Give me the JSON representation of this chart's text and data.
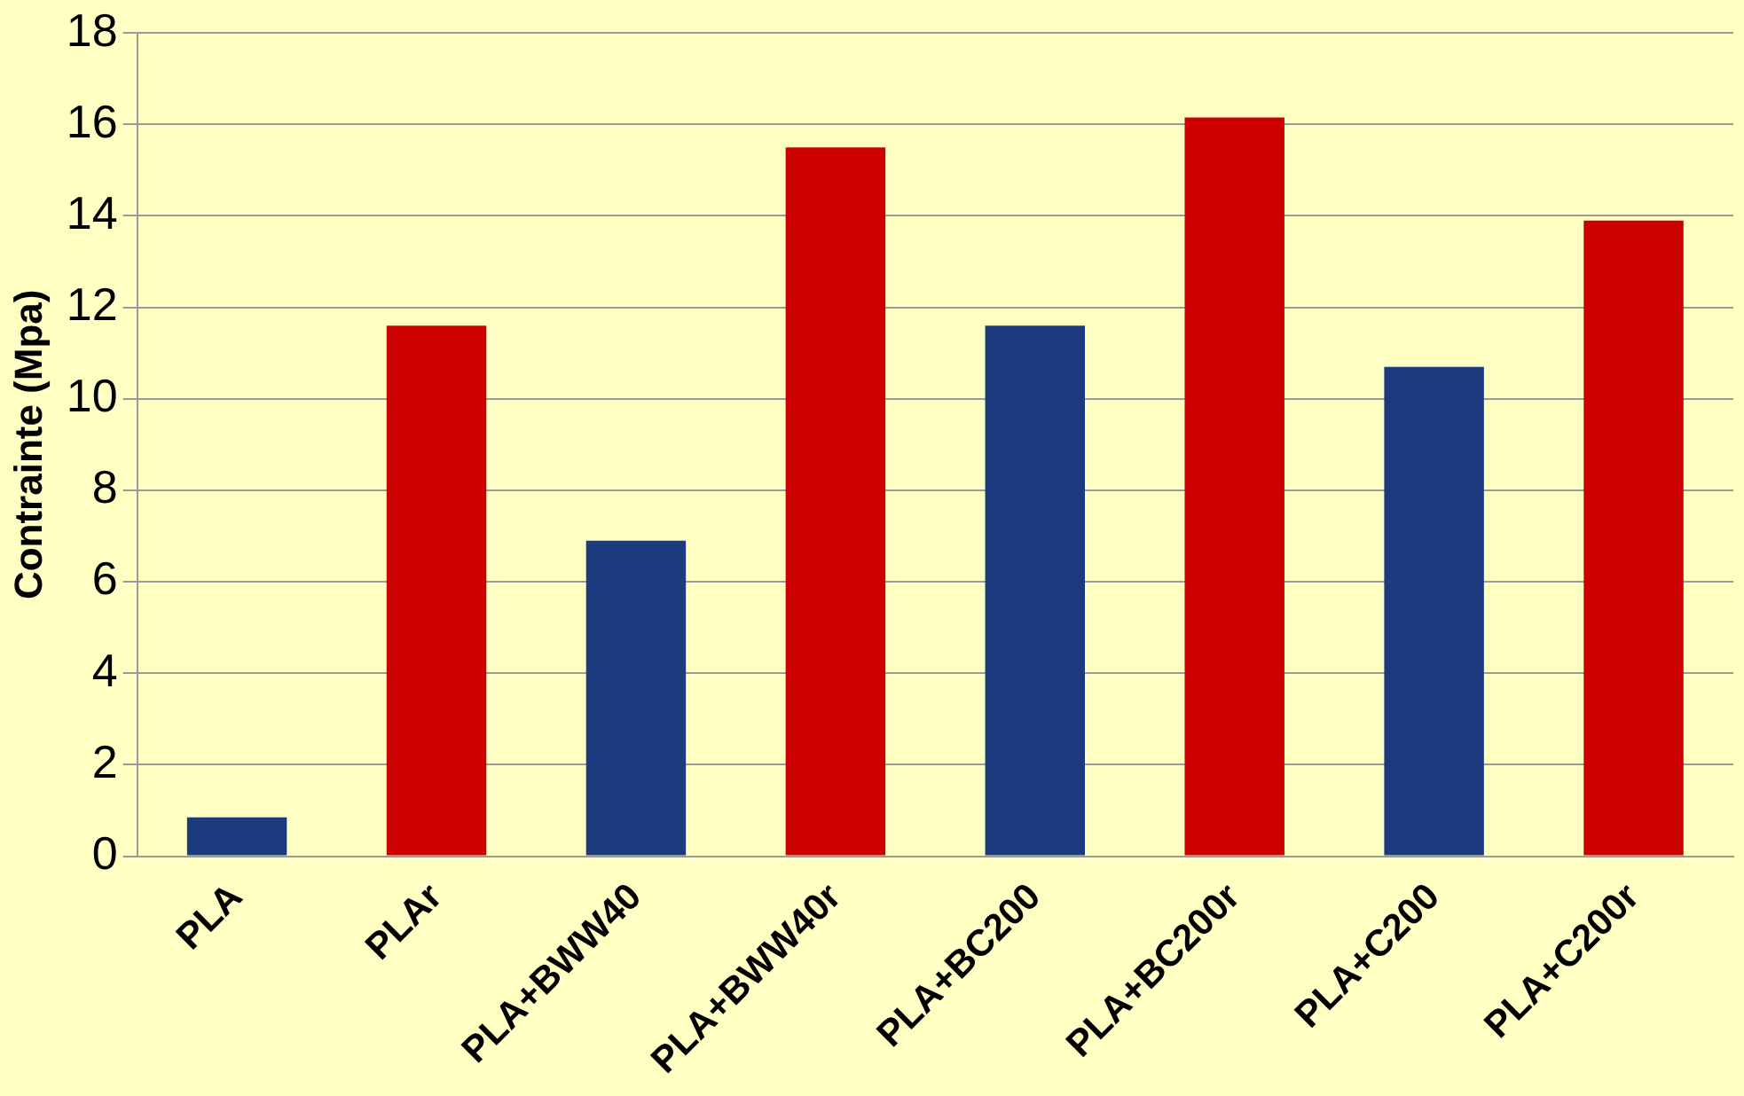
{
  "chart_data": {
    "type": "bar",
    "ylabel": "Contrainte (Mpa)",
    "categories": [
      "PLA",
      "PLAr",
      "PLA+BWW40",
      "PLA+BWW40r",
      "PLA+BC200",
      "PLA+BC200r",
      "PLA+C200",
      "PLA+C200r"
    ],
    "values": [
      0.85,
      11.6,
      6.9,
      15.5,
      11.6,
      16.15,
      10.7,
      13.9
    ],
    "colors": [
      "#1c3a7e",
      "#cc0000",
      "#1c3a7e",
      "#cc0000",
      "#1c3a7e",
      "#cc0000",
      "#1c3a7e",
      "#cc0000"
    ],
    "ylim": [
      0,
      18
    ],
    "yticks": [
      0,
      2,
      4,
      6,
      8,
      10,
      12,
      14,
      16,
      18
    ],
    "grid": "y",
    "legend": false
  }
}
